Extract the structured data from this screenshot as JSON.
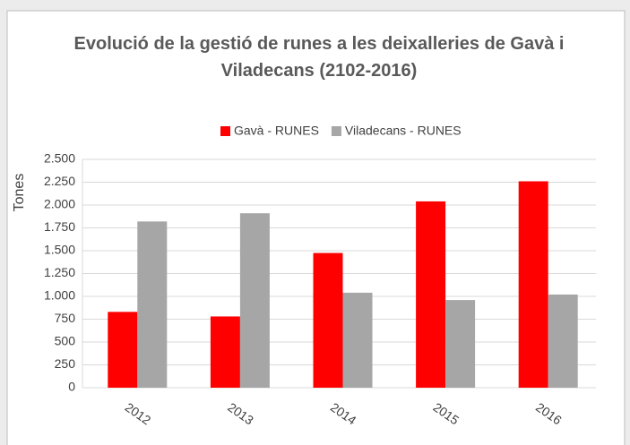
{
  "chart_data": {
    "type": "bar",
    "title": "Evolució de la gestió de runes a les deixalleries de Gavà i Viladecans (2102-2016)",
    "y_label": "Tones",
    "categories": [
      "2012",
      "2013",
      "2014",
      "2015",
      "2016"
    ],
    "series": [
      {
        "name": "Gavà - RUNES",
        "color": "#ff0000",
        "values": [
          830,
          780,
          1475,
          2040,
          2260
        ]
      },
      {
        "name": "Viladecans - RUNES",
        "color": "#a6a6a6",
        "values": [
          1820,
          1910,
          1040,
          960,
          1020
        ]
      }
    ],
    "ylim": [
      0,
      2500
    ],
    "yticks": [
      0,
      250,
      500,
      750,
      {
        "value": 1000,
        "label": "1.000"
      },
      {
        "value": 1250,
        "label": "1.250"
      },
      {
        "value": 1500,
        "label": "1.500"
      },
      {
        "value": 1750,
        "label": "1.750"
      },
      {
        "value": 2000,
        "label": "2.000"
      },
      {
        "value": 2250,
        "label": "2.250"
      },
      {
        "value": 2500,
        "label": "2.500"
      }
    ],
    "grid": true,
    "legend": "top"
  }
}
